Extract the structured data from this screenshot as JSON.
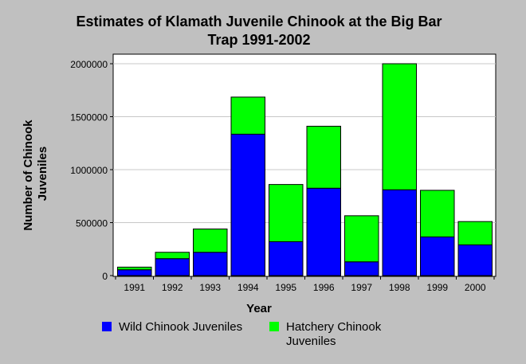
{
  "chart_data": {
    "type": "bar",
    "stacked": true,
    "title": "Estimates of Klamath Juvenile Chinook at the Big Bar Trap 1991-2002",
    "title_lines": [
      "Estimates of Klamath Juvenile Chinook at the Big Bar",
      "Trap 1991-2002"
    ],
    "xlabel": "Year",
    "ylabel": "Number of Chinook Juveniles",
    "ylabel_lines": [
      "Number of Chinook",
      "Juveniles"
    ],
    "ylim": [
      0,
      2000000
    ],
    "yticks": [
      0,
      500000,
      1000000,
      1500000,
      2000000
    ],
    "ytick_labels": [
      "0",
      "500000",
      "1000000",
      "1500000",
      "2000000"
    ],
    "grid": true,
    "legend_position": "bottom",
    "categories": [
      "1991",
      "1992",
      "1993",
      "1994",
      "1995",
      "1996",
      "1997",
      "1998",
      "1999",
      "2000"
    ],
    "series": [
      {
        "name": "Wild Chinook Juveniles",
        "name_lines": [
          "Wild Chinook Juveniles"
        ],
        "color": "#0000ff",
        "values": [
          55000,
          160000,
          220000,
          1335000,
          320000,
          825000,
          130000,
          810000,
          365000,
          290000
        ]
      },
      {
        "name": "Hatchery Chinook Juveniles",
        "name_lines": [
          "Hatchery Chinook",
          "Juveniles"
        ],
        "color": "#00ff00",
        "values": [
          25000,
          60000,
          220000,
          350000,
          540000,
          585000,
          435000,
          1190000,
          440000,
          220000
        ]
      }
    ]
  },
  "colors": {
    "background": "#c0c0c0",
    "plot_background": "#ffffff",
    "bar_outline": "#000000",
    "grid": "#c8c8c8"
  }
}
